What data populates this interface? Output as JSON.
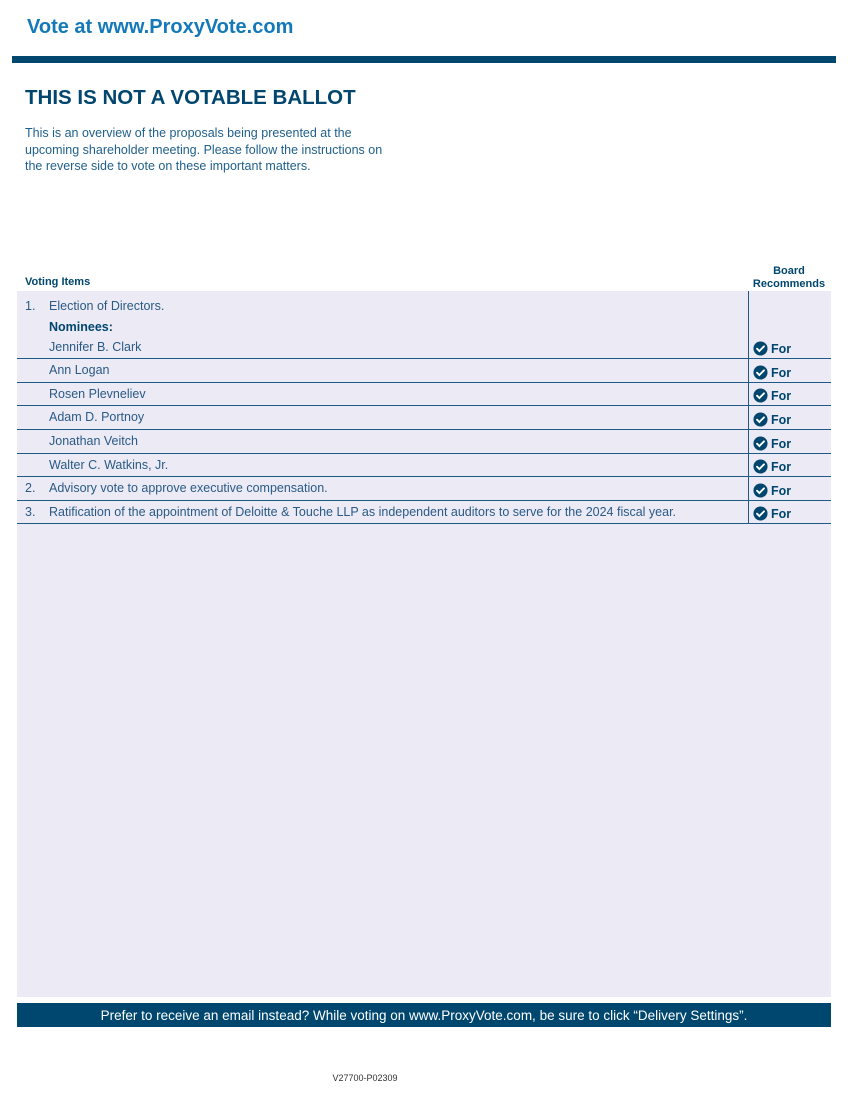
{
  "header": {
    "vote_at": "Vote at www.ProxyVote.com"
  },
  "title": "THIS IS NOT A VOTABLE BALLOT",
  "intro": [
    "This is an overview of the proposals being presented at the",
    "upcoming shareholder meeting. Please follow the instructions on",
    "the reverse side to vote on these important matters."
  ],
  "table": {
    "col_items": "Voting Items",
    "col_board": [
      "Board",
      "Recommends"
    ],
    "item1": {
      "number": "1.",
      "text": "Election of Directors.",
      "nominees_label": "Nominees:"
    },
    "rows": [
      {
        "number": "",
        "text": "Jennifer B. Clark",
        "rec": "For"
      },
      {
        "number": "",
        "text": "Ann Logan",
        "rec": "For"
      },
      {
        "number": "",
        "text": "Rosen Plevneliev",
        "rec": "For"
      },
      {
        "number": "",
        "text": "Adam D. Portnoy",
        "rec": "For"
      },
      {
        "number": "",
        "text": "Jonathan Veitch",
        "rec": "For"
      },
      {
        "number": "",
        "text": "Walter C. Watkins, Jr.",
        "rec": "For"
      },
      {
        "number": "2.",
        "text": "Advisory vote to approve executive compensation.",
        "rec": "For"
      },
      {
        "number": "3.",
        "text": "Ratification of the appointment of Deloitte & Touche LLP as independent auditors to serve for the 2024 fiscal year.",
        "rec": "For"
      }
    ],
    "rec_icon": "check-circle-icon"
  },
  "footer": "Prefer to receive an email instead? While voting on www.ProxyVote.com, be sure to click “Delivery Settings”.",
  "code": "V27700-P02309",
  "colors": {
    "primary": "#00476f",
    "link": "#1479b8",
    "panel": "#ebeaf5"
  }
}
